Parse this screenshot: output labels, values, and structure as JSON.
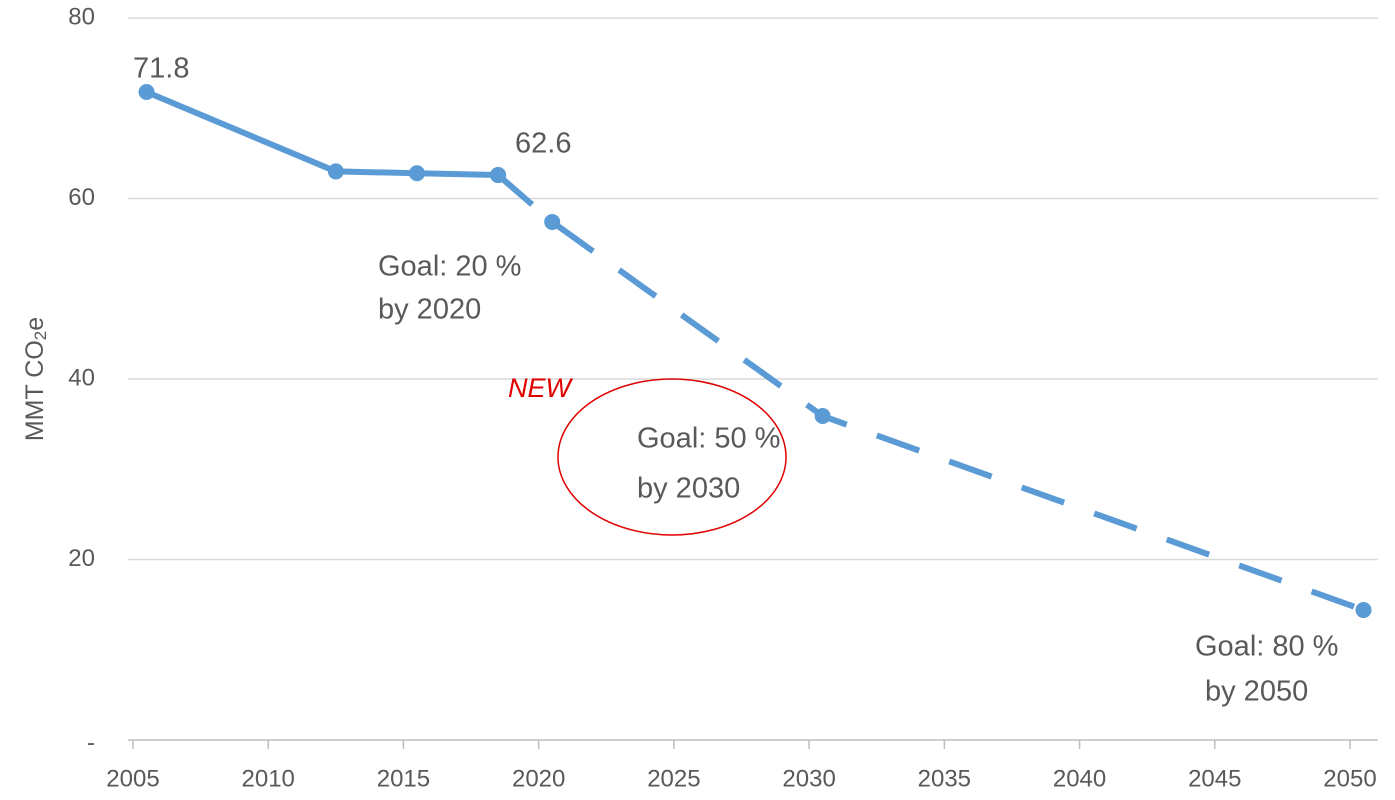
{
  "chart_data": {
    "type": "line",
    "ylabel": {
      "text": "MMT CO",
      "subscript": "2",
      "suffix": "e"
    },
    "series": [
      {
        "color": "#5b9bd5",
        "dashed": false,
        "x": [
          2005.5,
          2012.5,
          2015.5,
          2018.5
        ],
        "values": [
          71.8,
          63.0,
          62.8,
          62.6
        ]
      },
      {
        "color": "#5b9bd5",
        "dashed": true,
        "x": [
          2018.5,
          2020.5,
          2030.5,
          2050.5
        ],
        "values": [
          62.6,
          57.4,
          35.9,
          14.4
        ]
      }
    ],
    "xlim": [
      2005,
      2050
    ],
    "xticks": [
      2005,
      2010,
      2015,
      2020,
      2025,
      2030,
      2035,
      2040,
      2045,
      2050
    ],
    "ylim": [
      0,
      80
    ],
    "yticks": [
      {
        "value": 0,
        "label": "-"
      },
      20,
      40,
      60,
      80
    ],
    "grid": true,
    "annotations": [
      "Goal: 20 %",
      "by 2020",
      "NEW",
      "Goal: 50 %",
      "by 2030",
      "Goal: 80 %",
      "by 2050"
    ],
    "highlight_color": "#e00000"
  }
}
